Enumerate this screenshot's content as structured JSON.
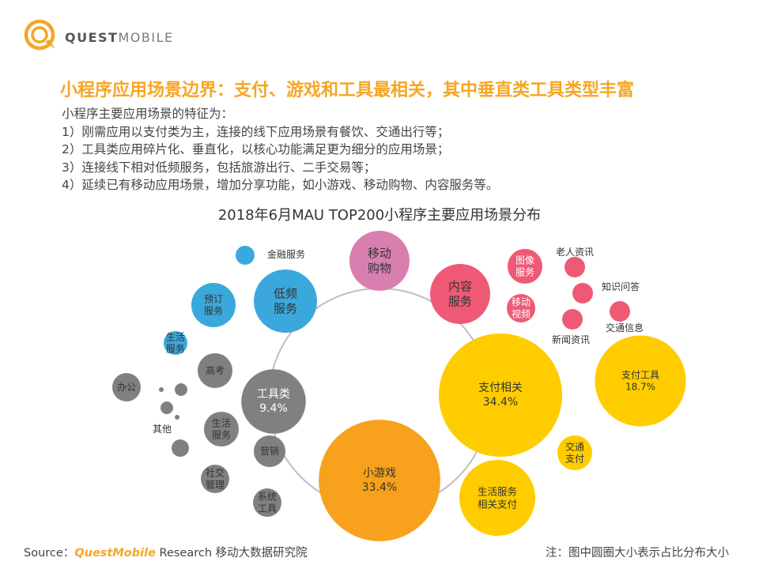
{
  "header": {
    "logo_text_bold": "QUEST",
    "logo_text_light": "MOBILE",
    "headline": "小程序应用场景边界：支付、游戏和工具最相关，其中垂直类工具类型丰富"
  },
  "intro": [
    "小程序主要应用场景的特征为：",
    "1）刚需应用以支付类为主，连接的线下应用场景有餐饮、交通出行等；",
    "2）工具类应用碎片化、垂直化，以核心功能满足更为细分的应用场景；",
    "3）连接线下相对低频服务，包括旅游出行、二手交易等；",
    "4）延续已有移动应用场景，增加分享功能，如小游戏、移动购物、内容服务等。"
  ],
  "colors": {
    "accent_orange": "#f5a623",
    "payment_yellow": "#ffcc00",
    "game_orange": "#f7a11d",
    "tool_gray": "#808080",
    "lowfreq_blue": "#3ba8dc",
    "shopping_pink": "#d97fb0",
    "content_red": "#ee5a75",
    "ring_gray": "#bfbfbf"
  },
  "chart_data": {
    "type": "bubble",
    "title": "2018年6月MAU TOP200小程序主要应用场景分布",
    "note": "注：图中圆圈大小表示占比分布大小",
    "main_categories": [
      {
        "name": "支付相关",
        "value_label": "34.4%",
        "value": 34.4,
        "color": "#ffcc00"
      },
      {
        "name": "小游戏",
        "value_label": "33.4%",
        "value": 33.4,
        "color": "#f7a11d"
      },
      {
        "name": "工具类",
        "value_label": "9.4%",
        "value": 9.4,
        "color": "#808080"
      },
      {
        "name": "低频服务",
        "value_label": "",
        "color": "#3ba8dc"
      },
      {
        "name": "移动购物",
        "value_label": "",
        "color": "#d97fb0"
      },
      {
        "name": "内容服务",
        "value_label": "",
        "color": "#ee5a75"
      }
    ],
    "sub_categories": [
      {
        "parent": "支付相关",
        "name": "支付工具",
        "value_label": "18.7%",
        "value": 18.7
      },
      {
        "parent": "支付相关",
        "name": "交通支付",
        "value_label": ""
      },
      {
        "parent": "支付相关",
        "name": "生活服务相关支付",
        "value_label": ""
      },
      {
        "parent": "内容服务",
        "name": "图像服务"
      },
      {
        "parent": "内容服务",
        "name": "移动视频"
      },
      {
        "parent": "内容服务",
        "name": "老人资讯"
      },
      {
        "parent": "内容服务",
        "name": "知识问答"
      },
      {
        "parent": "内容服务",
        "name": "新闻资讯"
      },
      {
        "parent": "内容服务",
        "name": "交通信息"
      },
      {
        "parent": "低频服务",
        "name": "金融服务"
      },
      {
        "parent": "低频服务",
        "name": "预订服务"
      },
      {
        "parent": "低频服务",
        "name": "生活服务"
      },
      {
        "parent": "工具类",
        "name": "高考"
      },
      {
        "parent": "工具类",
        "name": "办公"
      },
      {
        "parent": "工具类",
        "name": "其他"
      },
      {
        "parent": "工具类",
        "name": "生活服务"
      },
      {
        "parent": "工具类",
        "name": "营销"
      },
      {
        "parent": "工具类",
        "name": "社交管理"
      },
      {
        "parent": "工具类",
        "name": "系统工具"
      }
    ]
  },
  "footer": {
    "source_prefix": "Source：",
    "source_brand": "QuestMobile",
    "source_suffix": " Research 移动大数据研究院"
  }
}
